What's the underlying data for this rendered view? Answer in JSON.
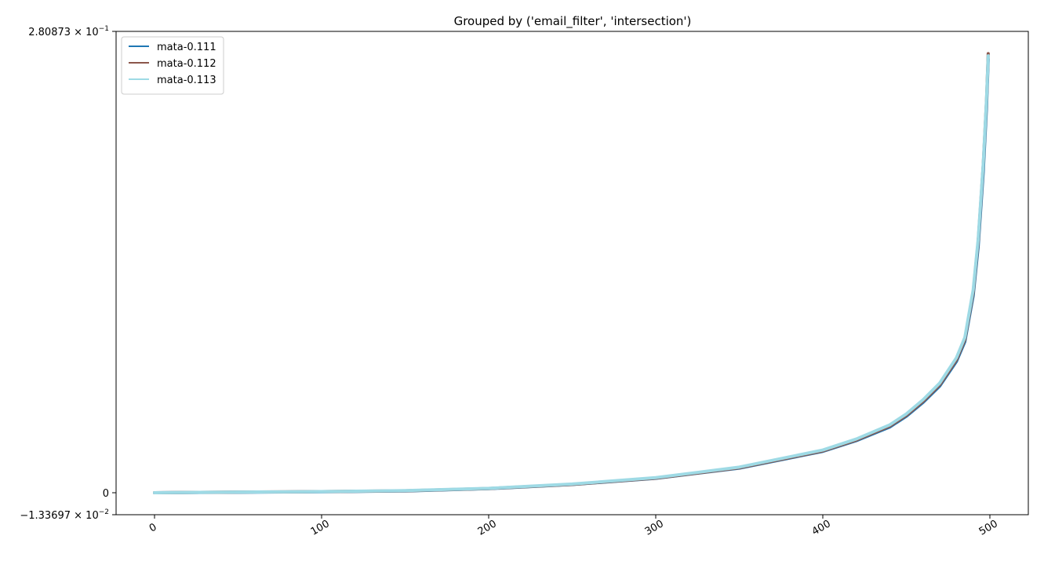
{
  "chart_data": {
    "type": "line",
    "title": "Grouped by ('email_filter', 'intersection')",
    "xlabel": "",
    "ylabel": "",
    "xlim": [
      -23,
      523
    ],
    "ylim": [
      -0.0133697,
      0.280873
    ],
    "x_ticks": [
      0,
      100,
      200,
      300,
      400,
      500
    ],
    "x_tick_labels": [
      "0",
      "100",
      "200",
      "300",
      "400",
      "500"
    ],
    "y_ticks": [
      {
        "value": 0.280873,
        "mantissa": "2.80873",
        "exponent": "−1",
        "plain": ""
      },
      {
        "value": 0,
        "mantissa": "",
        "exponent": "",
        "plain": "0"
      },
      {
        "value": -0.0133697,
        "mantissa": "−1.33697",
        "exponent": "−2",
        "plain": ""
      }
    ],
    "grid": false,
    "legend_position": "upper-left",
    "series": [
      {
        "name": "mata-0.111",
        "color": "#1f77b4",
        "x": [
          0,
          50,
          100,
          150,
          200,
          250,
          300,
          350,
          400,
          420,
          440,
          450,
          460,
          470,
          480,
          485,
          490,
          493,
          496,
          498,
          499
        ],
        "y": [
          0.0,
          0.0003,
          0.0006,
          0.0011,
          0.0025,
          0.005,
          0.0088,
          0.015,
          0.0252,
          0.0317,
          0.04,
          0.0466,
          0.055,
          0.065,
          0.08,
          0.092,
          0.12,
          0.15,
          0.195,
          0.235,
          0.264
        ]
      },
      {
        "name": "mata-0.112",
        "color": "#8c564b",
        "x": [
          0,
          50,
          100,
          150,
          200,
          250,
          300,
          350,
          400,
          420,
          440,
          450,
          460,
          470,
          480,
          485,
          490,
          493,
          496,
          498,
          499
        ],
        "y": [
          0.0,
          0.0004,
          0.0007,
          0.0012,
          0.0026,
          0.0051,
          0.0089,
          0.0152,
          0.0255,
          0.0321,
          0.0406,
          0.0472,
          0.0557,
          0.0658,
          0.081,
          0.0933,
          0.122,
          0.153,
          0.199,
          0.239,
          0.2673
        ]
      },
      {
        "name": "mata-0.113",
        "color": "#9edae5",
        "x": [
          0,
          50,
          100,
          150,
          200,
          250,
          300,
          350,
          400,
          420,
          440,
          450,
          460,
          470,
          480,
          485,
          490,
          493,
          496,
          498,
          499
        ],
        "y": [
          0.0,
          0.0004,
          0.0007,
          0.0013,
          0.0027,
          0.0053,
          0.0092,
          0.0156,
          0.026,
          0.0327,
          0.0413,
          0.048,
          0.0566,
          0.0668,
          0.0822,
          0.0945,
          0.1235,
          0.1545,
          0.2,
          0.24,
          0.266
        ]
      }
    ]
  }
}
